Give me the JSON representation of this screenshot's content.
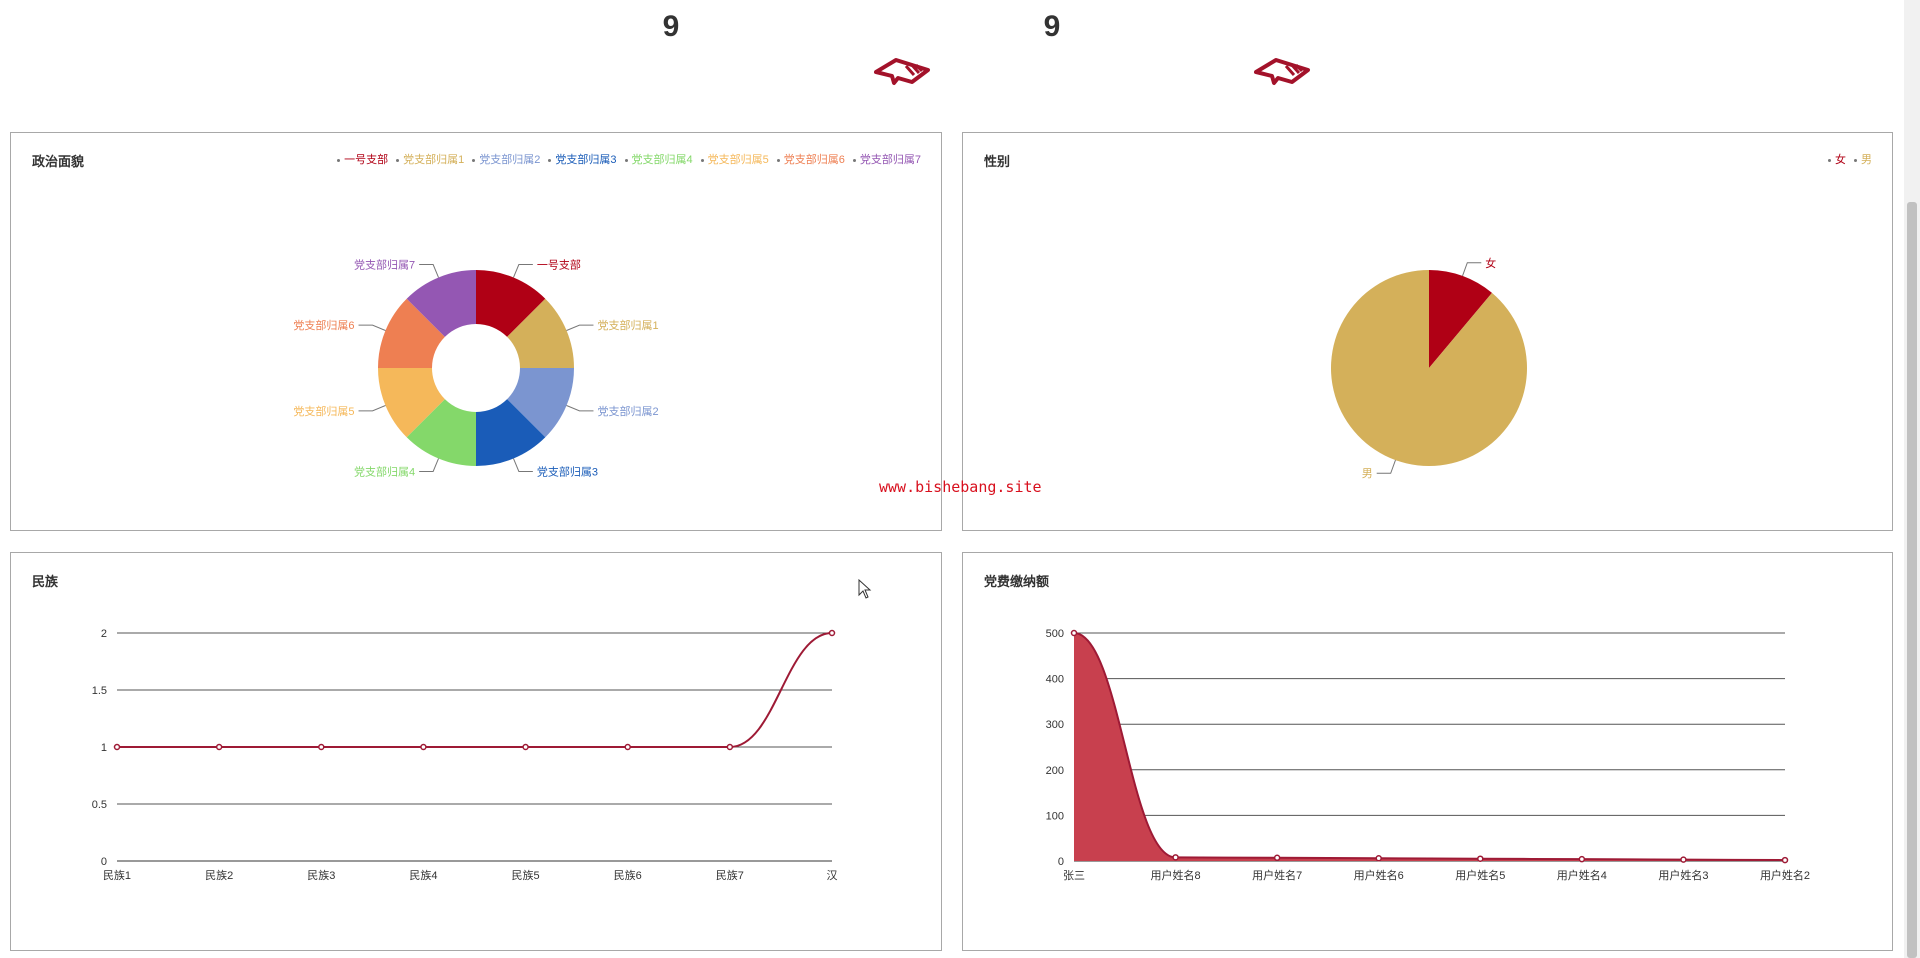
{
  "stats": [
    {
      "value": "9"
    },
    {
      "value": "9"
    }
  ],
  "watermark": "www.bishebang.site",
  "colors": {
    "accent": "#9e1a35",
    "area": "#c8404e"
  },
  "chart_data": [
    {
      "type": "pie",
      "title": "政治面貌",
      "donut": true,
      "legend_position": "top-right",
      "categories": [
        "一号支部",
        "党支部归属1",
        "党支部归属2",
        "党支部归属3",
        "党支部归属4",
        "党支部归属5",
        "党支部归属6",
        "党支部归属7"
      ],
      "values": [
        1,
        1,
        1,
        1,
        1,
        1,
        1,
        1
      ],
      "colors": [
        "#b00015",
        "#d4b05a",
        "#7b95d0",
        "#1a5cb8",
        "#84d86a",
        "#f5b85a",
        "#ee7f52",
        "#9457b3"
      ]
    },
    {
      "type": "pie",
      "title": "性别",
      "legend_position": "top-right",
      "categories": [
        "女",
        "男"
      ],
      "values": [
        1,
        8
      ],
      "colors": [
        "#b00015",
        "#d4b05a"
      ]
    },
    {
      "type": "line",
      "title": "民族",
      "categories": [
        "民族1",
        "民族2",
        "民族3",
        "民族4",
        "民族5",
        "民族6",
        "民族7",
        "汉"
      ],
      "values": [
        1,
        1,
        1,
        1,
        1,
        1,
        1,
        2
      ],
      "ylim": [
        0,
        2
      ],
      "yticks": [
        "0",
        "0.5",
        "1",
        "1.5",
        "2"
      ],
      "grid": true
    },
    {
      "type": "area",
      "title": "党费缴纳额",
      "categories": [
        "张三",
        "用户姓名8",
        "用户姓名7",
        "用户姓名6",
        "用户姓名5",
        "用户姓名4",
        "用户姓名3",
        "用户姓名2"
      ],
      "values": [
        500,
        8,
        7,
        6,
        5,
        4,
        3,
        2
      ],
      "ylim": [
        0,
        500
      ],
      "yticks": [
        "0",
        "100",
        "200",
        "300",
        "400",
        "500"
      ],
      "grid": true
    }
  ]
}
